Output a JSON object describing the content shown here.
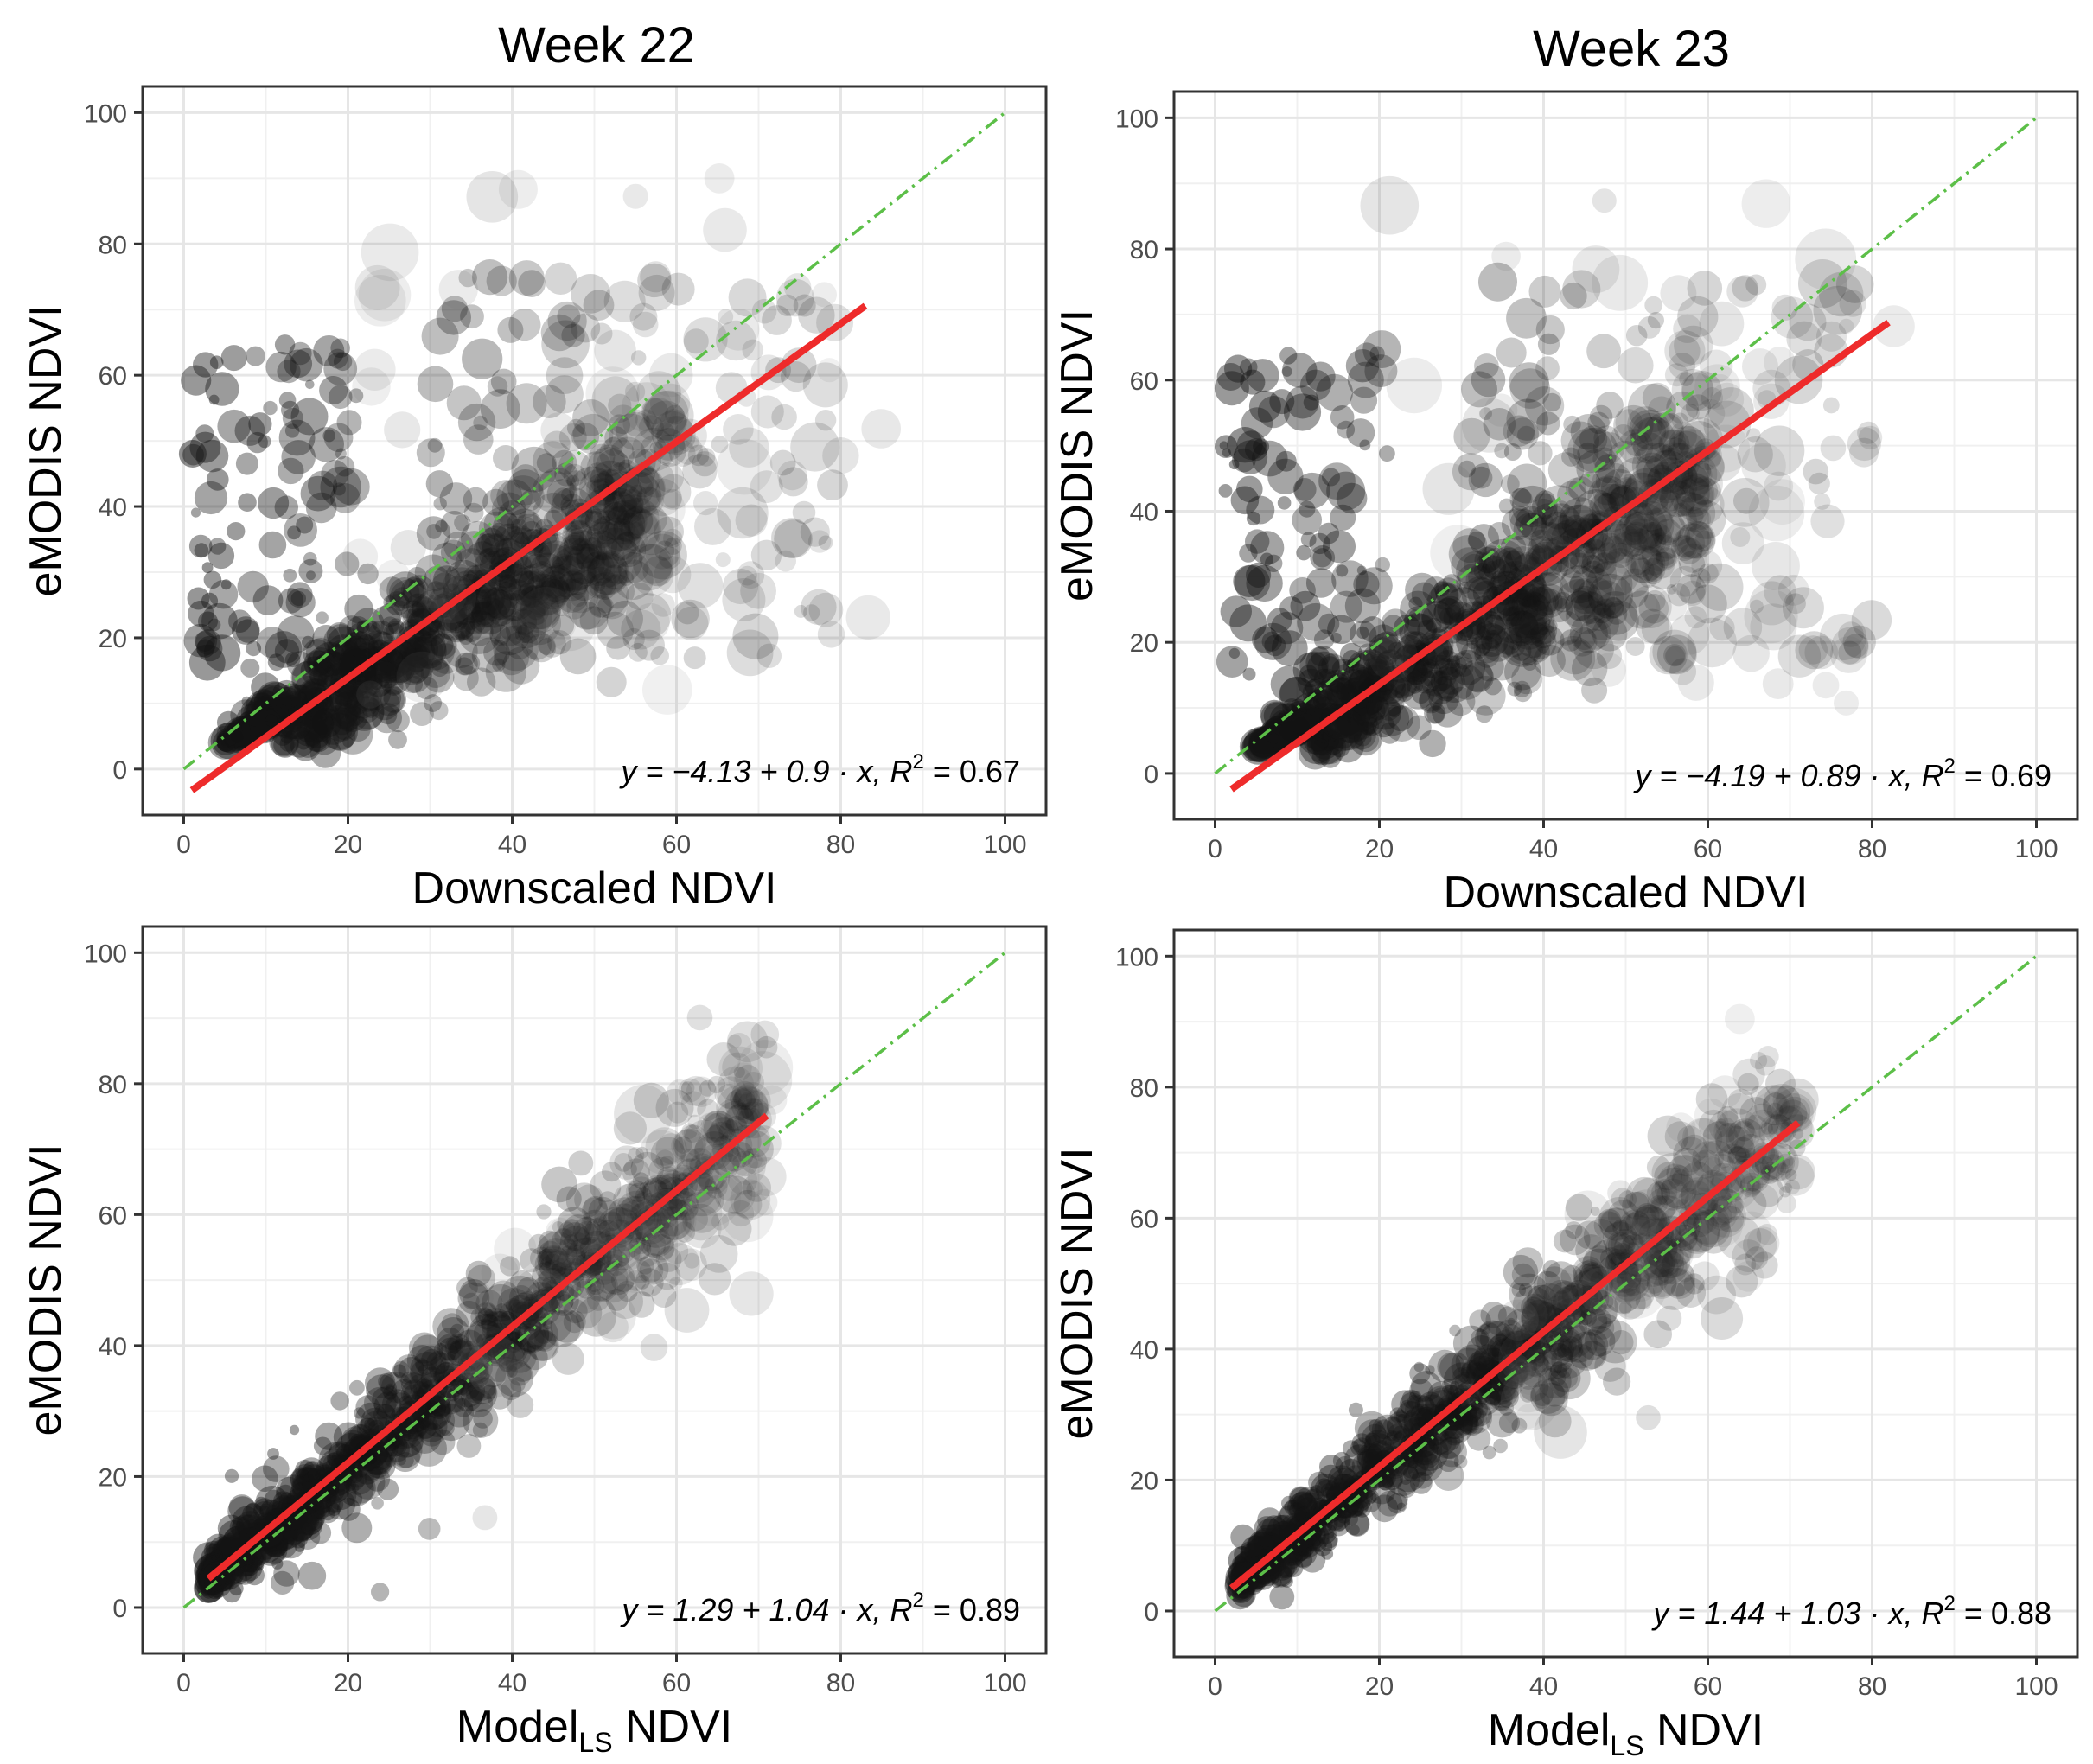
{
  "column_titles": [
    "Week 22",
    "Week 23"
  ],
  "chart_data": [
    {
      "type": "scatter",
      "column_title": "Week 22",
      "xlabel": "Downscaled NDVI",
      "xlabel_sub": "",
      "xlabel_tail": "",
      "ylabel": "eMODIS NDVI",
      "xlim": [
        -5,
        105
      ],
      "ylim": [
        -7,
        104
      ],
      "xticks": [
        0,
        20,
        40,
        60,
        80,
        100
      ],
      "yticks": [
        0,
        20,
        40,
        60,
        80,
        100
      ],
      "grid": true,
      "fit": {
        "intercept": -4.13,
        "slope": 0.9,
        "x_range": [
          1,
          83
        ]
      },
      "reference_line": {
        "label": "1:1",
        "x_range": [
          0,
          100
        ]
      },
      "equation": {
        "prefix": "y = −4.13 + 0.9 · x,",
        "r2_label": "R",
        "r2_exp": "2",
        "r2_value": "= 0.67"
      },
      "point_cloud": {
        "cluster": "low-bias",
        "spread": "wide"
      }
    },
    {
      "type": "scatter",
      "column_title": "Week 23",
      "xlabel": "Downscaled NDVI",
      "xlabel_sub": "",
      "xlabel_tail": "",
      "ylabel": "eMODIS NDVI",
      "xlim": [
        -5,
        105
      ],
      "ylim": [
        -7,
        104
      ],
      "xticks": [
        0,
        20,
        40,
        60,
        80,
        100
      ],
      "yticks": [
        0,
        20,
        40,
        60,
        80,
        100
      ],
      "grid": true,
      "fit": {
        "intercept": -4.19,
        "slope": 0.89,
        "x_range": [
          2,
          82
        ]
      },
      "reference_line": {
        "label": "1:1",
        "x_range": [
          0,
          100
        ]
      },
      "equation": {
        "prefix": "y = −4.19 + 0.89 · x,",
        "r2_label": "R",
        "r2_exp": "2",
        "r2_value": "= 0.69"
      },
      "point_cloud": {
        "cluster": "low-bias",
        "spread": "wide"
      }
    },
    {
      "type": "scatter",
      "column_title": "",
      "xlabel": "Model",
      "xlabel_sub": "LS",
      "xlabel_tail": " NDVI",
      "ylabel": "eMODIS NDVI",
      "xlim": [
        -5,
        105
      ],
      "ylim": [
        -7,
        104
      ],
      "xticks": [
        0,
        20,
        40,
        60,
        80,
        100
      ],
      "yticks": [
        0,
        20,
        40,
        60,
        80,
        100
      ],
      "grid": true,
      "fit": {
        "intercept": 1.29,
        "slope": 1.04,
        "x_range": [
          3,
          71
        ]
      },
      "reference_line": {
        "label": "1:1",
        "x_range": [
          0,
          100
        ]
      },
      "equation": {
        "prefix": "y = 1.29 + 1.04 · x,",
        "r2_label": "R",
        "r2_exp": "2",
        "r2_value": "= 0.89"
      },
      "point_cloud": {
        "cluster": "tight",
        "spread": "narrow"
      }
    },
    {
      "type": "scatter",
      "column_title": "",
      "xlabel": "Model",
      "xlabel_sub": "LS",
      "xlabel_tail": " NDVI",
      "ylabel": "eMODIS NDVI",
      "xlim": [
        -5,
        105
      ],
      "ylim": [
        -7,
        104
      ],
      "xticks": [
        0,
        20,
        40,
        60,
        80,
        100
      ],
      "yticks": [
        0,
        20,
        40,
        60,
        80,
        100
      ],
      "grid": true,
      "fit": {
        "intercept": 1.44,
        "slope": 1.03,
        "x_range": [
          2,
          71
        ]
      },
      "reference_line": {
        "label": "1:1",
        "x_range": [
          0,
          100
        ]
      },
      "equation": {
        "prefix": "y = 1.44 + 1.03 · x,",
        "r2_label": "R",
        "r2_exp": "2",
        "r2_value": "= 0.88"
      },
      "point_cloud": {
        "cluster": "tight",
        "spread": "narrow"
      }
    }
  ],
  "style": {
    "fit_color": "#ee2b2b",
    "ref_color": "#5cbf48",
    "point_color": "#141414",
    "grid_color": "#e6e6e6",
    "axis_color": "#333333",
    "tick_label_color": "#4d4d4d"
  }
}
